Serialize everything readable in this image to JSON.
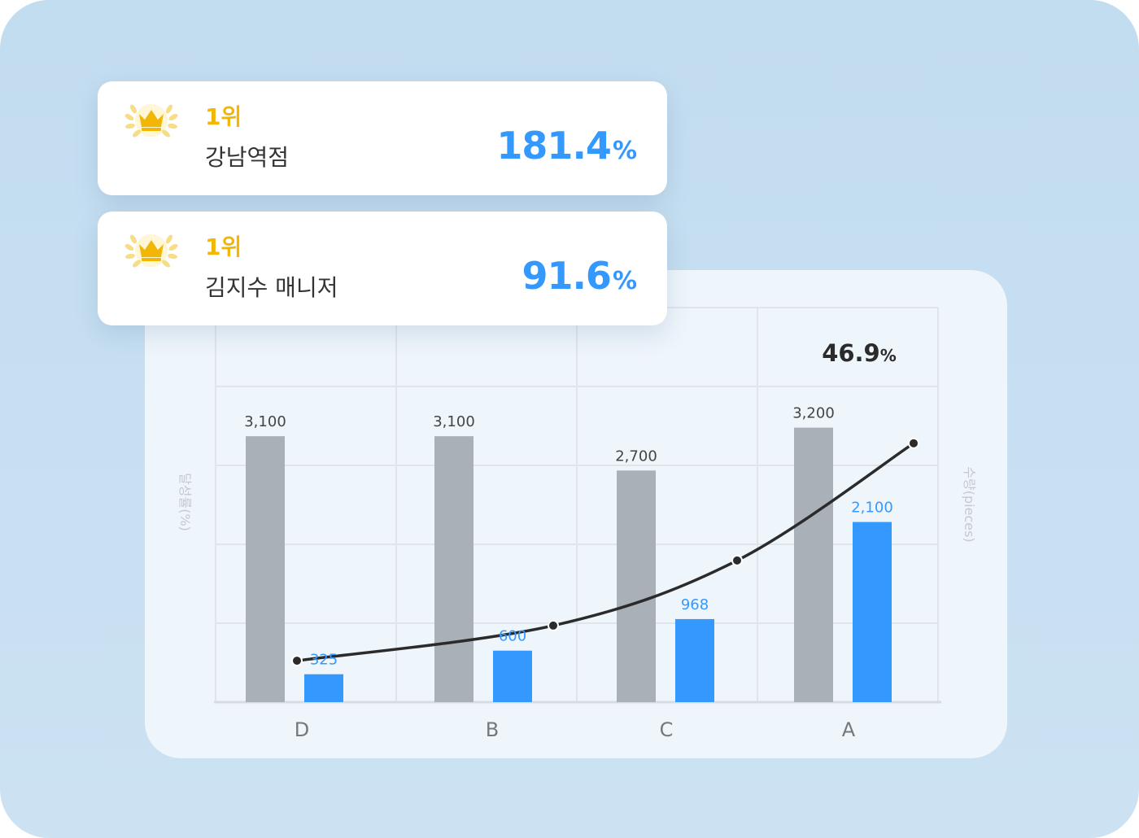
{
  "rank_cards": [
    {
      "rank": "1위",
      "name": "강남역점",
      "value": "181.4",
      "unit": "%"
    },
    {
      "rank": "1위",
      "name": "김지수 매니저",
      "value": "91.6",
      "unit": "%"
    }
  ],
  "colors": {
    "background": "#c6dff2",
    "target_bar": "#a9b0b7",
    "actual_bar": "#3399ff",
    "line": "#2b2b2b",
    "rank_gold": "#f2b705",
    "rank_value": "#3399ff"
  },
  "icons": {
    "rank_badge": "crown-laurel-icon"
  },
  "chart_data": {
    "type": "bar",
    "categories": [
      "D",
      "B",
      "C",
      "A"
    ],
    "series": [
      {
        "values": [
          3100,
          3100,
          2700,
          3200
        ],
        "labels": [
          "3,100",
          "3,100",
          "2,700",
          "3,200"
        ],
        "color": "#a9b0b7"
      },
      {
        "values": [
          325,
          600,
          968,
          2100
        ],
        "labels": [
          "325",
          "600",
          "968",
          "2,100"
        ],
        "color": "#3399ff"
      }
    ],
    "line": {
      "values": [
        10.5,
        19.4,
        35.9,
        65.6
      ],
      "color": "#2b2b2b"
    },
    "annotation": {
      "value": "46.9",
      "unit": "%"
    },
    "y_left_label": "달성률(%)",
    "y_right_label": "수량(pieces)",
    "ylim_bars": [
      0,
      4600
    ],
    "ylim_line": [
      0,
      100
    ],
    "grid": true
  }
}
